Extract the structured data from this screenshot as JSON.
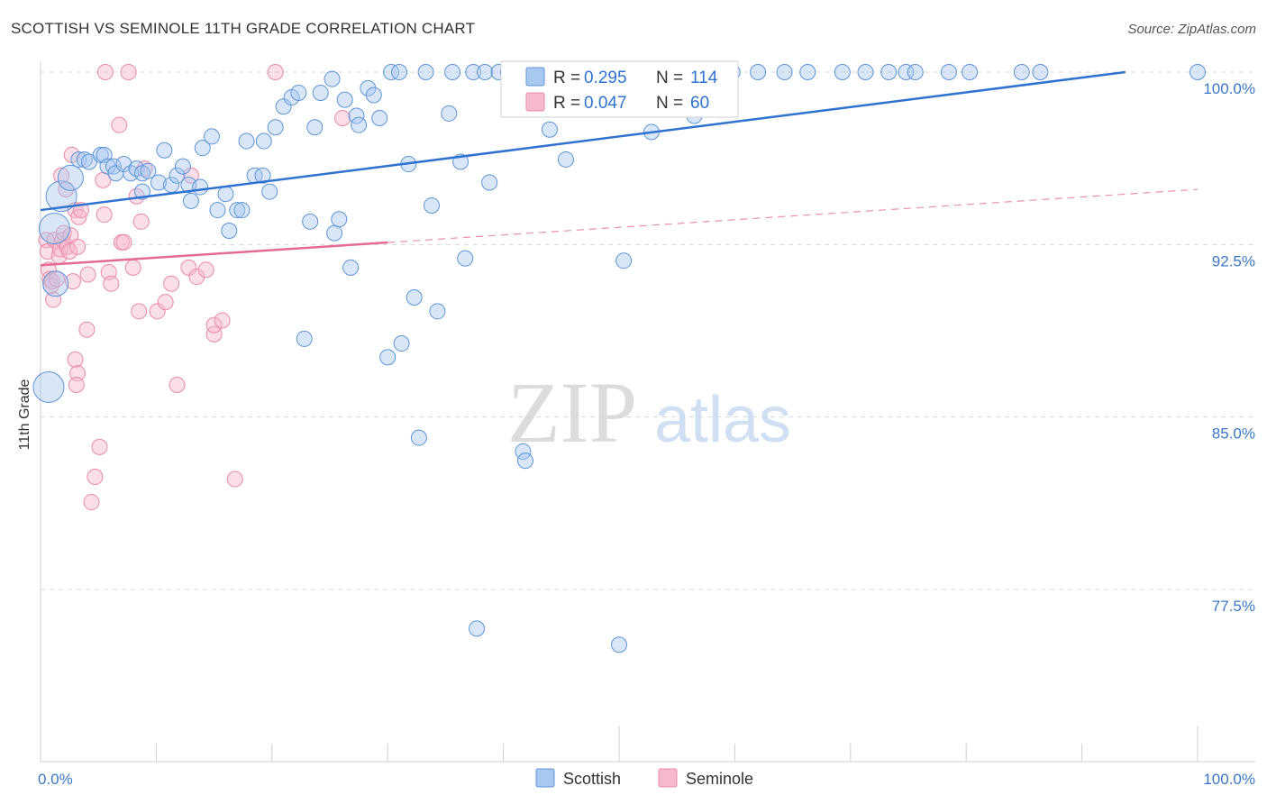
{
  "title": "SCOTTISH VS SEMINOLE 11TH GRADE CORRELATION CHART",
  "source": "Source: ZipAtlas.com",
  "watermark": {
    "zip": "ZIP",
    "atlas": "atlas"
  },
  "colors": {
    "scottish_fill": "#a8c8f0",
    "scottish_stroke": "#5f95d8",
    "scottish_line": "#2f73d0",
    "seminole_fill": "#f6b9cc",
    "seminole_stroke": "#e98aa8",
    "seminole_line": "#e46b93",
    "tick_label": "#3b78c4",
    "grid": "#d8d8d8"
  },
  "legend_top": {
    "rows": [
      {
        "r_label": "R =",
        "r_value": "0.295",
        "n_label": "N =",
        "n_value": "114"
      },
      {
        "r_label": "R =",
        "r_value": "0.047",
        "n_label": "N =",
        "n_value": "60"
      }
    ]
  },
  "legend_bottom": [
    "Scottish",
    "Seminole"
  ],
  "chart_data": {
    "type": "scatter",
    "xlabel": "",
    "ylabel": "11th Grade",
    "xlim": [
      0,
      100
    ],
    "ylim": [
      70.0,
      101.0
    ],
    "x_tick_labels": [
      {
        "value": 0,
        "label": "0.0%"
      },
      {
        "value": 100,
        "label": "100.0%"
      }
    ],
    "y_tick_labels": [
      {
        "value": 100.0,
        "label": "100.0%"
      },
      {
        "value": 92.5,
        "label": "92.5%"
      },
      {
        "value": 85.0,
        "label": "85.0%"
      },
      {
        "value": 77.5,
        "label": "77.5%"
      }
    ],
    "grid": true,
    "series": [
      {
        "name": "Scottish",
        "r": 0.295,
        "n": 114,
        "trend": {
          "x0": 0,
          "y0": 94.0,
          "x1": 100,
          "y1": 100.4,
          "solid_until": 100
        },
        "points": [
          [
            0.7,
            86.3,
            3
          ],
          [
            1.2,
            93.2,
            3
          ],
          [
            1.3,
            90.8,
            2
          ],
          [
            1.8,
            94.6,
            3
          ],
          [
            2.6,
            95.4,
            2
          ],
          [
            3.3,
            96.2,
            1
          ],
          [
            3.8,
            96.2,
            1
          ],
          [
            4.2,
            96.1,
            1
          ],
          [
            5.2,
            96.4,
            1
          ],
          [
            5.5,
            96.4,
            1
          ],
          [
            5.8,
            95.9,
            1
          ],
          [
            6.3,
            95.9,
            1
          ],
          [
            6.5,
            95.6,
            1
          ],
          [
            7.2,
            96.0,
            1
          ],
          [
            7.8,
            95.6,
            1
          ],
          [
            8.3,
            95.8,
            1
          ],
          [
            8.8,
            95.6,
            1
          ],
          [
            9.3,
            95.7,
            1
          ],
          [
            8.8,
            94.8,
            1
          ],
          [
            10.2,
            95.2,
            1
          ],
          [
            10.7,
            96.6,
            1
          ],
          [
            11.3,
            95.1,
            1
          ],
          [
            11.8,
            95.5,
            1
          ],
          [
            12.3,
            95.9,
            1
          ],
          [
            12.8,
            95.1,
            1
          ],
          [
            13.0,
            94.4,
            1
          ],
          [
            13.8,
            95.0,
            1
          ],
          [
            14.0,
            96.7,
            1
          ],
          [
            14.8,
            97.2,
            1
          ],
          [
            15.3,
            94.0,
            1
          ],
          [
            16.0,
            94.7,
            1
          ],
          [
            16.3,
            93.1,
            1
          ],
          [
            17.0,
            94.0,
            1
          ],
          [
            17.4,
            94.0,
            1
          ],
          [
            17.8,
            97.0,
            1
          ],
          [
            18.5,
            95.5,
            1
          ],
          [
            19.2,
            95.5,
            1
          ],
          [
            19.3,
            97.0,
            1
          ],
          [
            19.8,
            94.8,
            1
          ],
          [
            20.3,
            97.6,
            1
          ],
          [
            21.0,
            98.5,
            1
          ],
          [
            21.7,
            98.9,
            1
          ],
          [
            22.3,
            99.1,
            1
          ],
          [
            23.3,
            93.5,
            1
          ],
          [
            23.7,
            97.6,
            1
          ],
          [
            24.2,
            99.1,
            1
          ],
          [
            25.2,
            99.7,
            1
          ],
          [
            25.4,
            93.0,
            1
          ],
          [
            25.8,
            93.6,
            1
          ],
          [
            26.3,
            98.8,
            1
          ],
          [
            26.8,
            91.5,
            1
          ],
          [
            27.3,
            98.1,
            1
          ],
          [
            27.5,
            97.7,
            1
          ],
          [
            28.3,
            99.3,
            1
          ],
          [
            28.8,
            99.0,
            1
          ],
          [
            29.3,
            98.0,
            1
          ],
          [
            30.0,
            87.6,
            1
          ],
          [
            30.3,
            100.0,
            1
          ],
          [
            31.0,
            100.0,
            1
          ],
          [
            31.2,
            88.2,
            1
          ],
          [
            31.8,
            96.0,
            1
          ],
          [
            32.3,
            90.2,
            1
          ],
          [
            32.7,
            84.1,
            1
          ],
          [
            33.3,
            100.0,
            1
          ],
          [
            33.8,
            94.2,
            1
          ],
          [
            34.3,
            89.6,
            1
          ],
          [
            35.3,
            98.2,
            1
          ],
          [
            35.6,
            100.0,
            1
          ],
          [
            36.3,
            96.1,
            1
          ],
          [
            36.7,
            91.9,
            1
          ],
          [
            37.4,
            100.0,
            1
          ],
          [
            38.4,
            100.0,
            1
          ],
          [
            38.8,
            95.2,
            1
          ],
          [
            39.6,
            100.0,
            1
          ],
          [
            40.4,
            100.0,
            1
          ],
          [
            41.1,
            100.0,
            1
          ],
          [
            41.7,
            83.5,
            1
          ],
          [
            41.9,
            83.1,
            1
          ],
          [
            42.3,
            100.0,
            1
          ],
          [
            43.5,
            100.0,
            1
          ],
          [
            44.0,
            97.5,
            1
          ],
          [
            45.0,
            100.0,
            1
          ],
          [
            45.4,
            96.2,
            1
          ],
          [
            46.3,
            100.0,
            1
          ],
          [
            47.3,
            100.0,
            1
          ],
          [
            48.3,
            100.0,
            1
          ],
          [
            49.0,
            100.0,
            1
          ],
          [
            49.7,
            100.0,
            1
          ],
          [
            50.4,
            91.8,
            1
          ],
          [
            51.0,
            100.0,
            1
          ],
          [
            51.5,
            100.0,
            1
          ],
          [
            52.3,
            100.0,
            1
          ],
          [
            52.8,
            97.4,
            1
          ],
          [
            53.3,
            100.0,
            1
          ],
          [
            54.3,
            100.0,
            1
          ],
          [
            55.3,
            100.0,
            1
          ],
          [
            56.0,
            100.0,
            1
          ],
          [
            56.5,
            98.1,
            1
          ],
          [
            57.3,
            100.0,
            1
          ],
          [
            58.3,
            100.0,
            1
          ],
          [
            59.3,
            100.0,
            1
          ],
          [
            59.8,
            100.0,
            1
          ],
          [
            62.0,
            100.0,
            1
          ],
          [
            64.3,
            100.0,
            1
          ],
          [
            66.3,
            100.0,
            1
          ],
          [
            69.3,
            100.0,
            1
          ],
          [
            71.3,
            100.0,
            1
          ],
          [
            73.3,
            100.0,
            1
          ],
          [
            74.8,
            100.0,
            1
          ],
          [
            75.6,
            100.0,
            1
          ],
          [
            78.5,
            100.0,
            1
          ],
          [
            80.3,
            100.0,
            1
          ],
          [
            84.8,
            100.0,
            1
          ],
          [
            86.4,
            100.0,
            1
          ],
          [
            100.0,
            100.0,
            1
          ],
          [
            37.7,
            75.8,
            1
          ],
          [
            50.0,
            75.1,
            1
          ],
          [
            22.8,
            88.4,
            1
          ]
        ]
      },
      {
        "name": "Seminole",
        "r": 0.047,
        "n": 60,
        "trend": {
          "x0": 0,
          "y0": 91.6,
          "x1": 100,
          "y1": 94.9,
          "solid_until": 30
        },
        "points": [
          [
            0.5,
            92.7,
            1
          ],
          [
            0.6,
            92.2,
            1
          ],
          [
            0.7,
            91.4,
            1
          ],
          [
            0.8,
            91.0,
            1
          ],
          [
            0.9,
            90.7,
            1
          ],
          [
            1.0,
            90.9,
            1
          ],
          [
            1.1,
            90.1,
            1
          ],
          [
            1.2,
            92.7,
            1
          ],
          [
            1.4,
            91.0,
            1
          ],
          [
            1.6,
            92.0,
            1
          ],
          [
            1.7,
            92.3,
            1
          ],
          [
            1.8,
            95.5,
            1
          ],
          [
            1.9,
            92.7,
            1
          ],
          [
            2.0,
            93.0,
            1
          ],
          [
            2.2,
            94.9,
            1
          ],
          [
            2.3,
            92.4,
            1
          ],
          [
            2.5,
            92.2,
            1
          ],
          [
            2.6,
            92.9,
            1
          ],
          [
            2.7,
            96.4,
            1
          ],
          [
            2.8,
            90.9,
            1
          ],
          [
            3.0,
            94.0,
            1
          ],
          [
            3.2,
            92.4,
            1
          ],
          [
            3.3,
            93.7,
            1
          ],
          [
            3.5,
            94.0,
            1
          ],
          [
            3.0,
            87.5,
            1
          ],
          [
            3.2,
            86.9,
            1
          ],
          [
            3.1,
            86.4,
            1
          ],
          [
            4.0,
            88.8,
            1
          ],
          [
            4.1,
            91.2,
            1
          ],
          [
            4.4,
            81.3,
            1
          ],
          [
            4.7,
            82.4,
            1
          ],
          [
            5.1,
            83.7,
            1
          ],
          [
            5.4,
            95.3,
            1
          ],
          [
            5.5,
            93.8,
            1
          ],
          [
            5.6,
            100.0,
            1
          ],
          [
            5.9,
            91.3,
            1
          ],
          [
            6.1,
            90.8,
            1
          ],
          [
            6.8,
            97.7,
            1
          ],
          [
            7.0,
            92.6,
            1
          ],
          [
            7.2,
            92.6,
            1
          ],
          [
            7.6,
            100.0,
            1
          ],
          [
            8.0,
            91.5,
            1
          ],
          [
            8.3,
            94.6,
            1
          ],
          [
            8.5,
            89.6,
            1
          ],
          [
            8.7,
            93.5,
            1
          ],
          [
            9.0,
            95.8,
            1
          ],
          [
            10.1,
            89.6,
            1
          ],
          [
            10.8,
            90.0,
            1
          ],
          [
            11.3,
            90.8,
            1
          ],
          [
            11.8,
            86.4,
            1
          ],
          [
            12.8,
            91.5,
            1
          ],
          [
            13.0,
            95.5,
            1
          ],
          [
            13.5,
            91.1,
            1
          ],
          [
            14.3,
            91.4,
            1
          ],
          [
            15.0,
            88.6,
            1
          ],
          [
            15.0,
            89.0,
            1
          ],
          [
            15.7,
            89.2,
            1
          ],
          [
            16.8,
            82.3,
            1
          ],
          [
            20.3,
            100.0,
            1
          ],
          [
            26.1,
            98.0,
            1
          ]
        ]
      }
    ]
  }
}
